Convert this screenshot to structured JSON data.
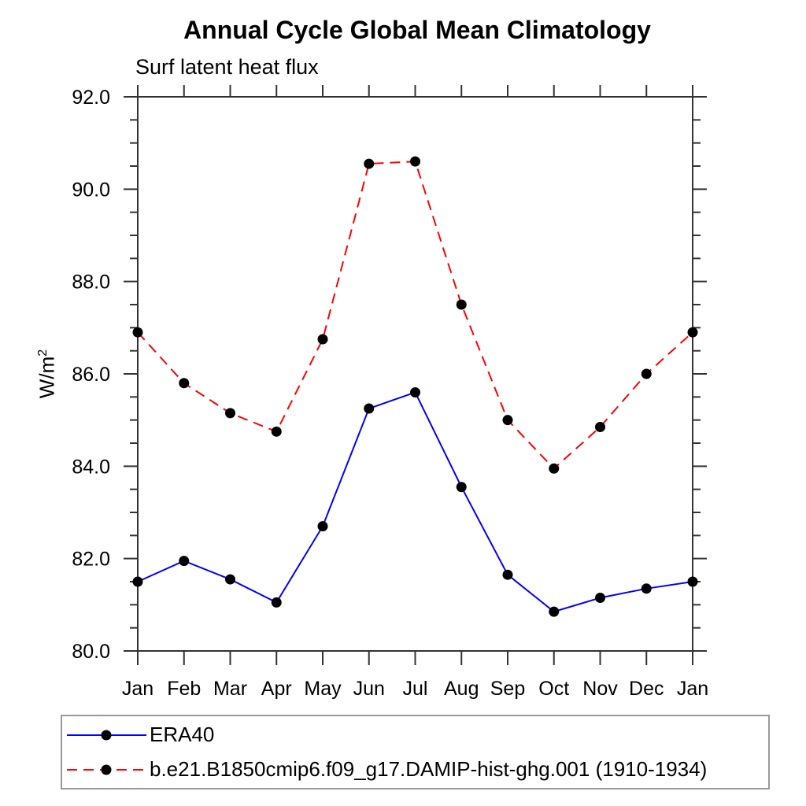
{
  "chart_data": {
    "type": "line",
    "title": "Annual Cycle Global Mean Climatology",
    "subtitle": "Surf latent heat flux",
    "ylabel_base": "W/m",
    "ylabel_exp": "2",
    "categories": [
      "Jan",
      "Feb",
      "Mar",
      "Apr",
      "May",
      "Jun",
      "Jul",
      "Aug",
      "Sep",
      "Oct",
      "Nov",
      "Dec",
      "Jan"
    ],
    "series": [
      {
        "name": "ERA40",
        "color": "#0000ff",
        "line_style": "solid",
        "dash": "none",
        "marker": "filled-circle",
        "marker_color": "#000000",
        "values": [
          81.5,
          81.95,
          81.55,
          81.05,
          82.7,
          85.25,
          85.6,
          83.55,
          81.65,
          80.85,
          81.15,
          81.35,
          81.5
        ]
      },
      {
        "name": "b.e21.B1850cmip6.f09_g17.DAMIP-hist-ghg.001 (1910-1934)",
        "color": "#ff0000",
        "line_style": "dashed",
        "dash": "13 8",
        "marker": "filled-circle",
        "marker_color": "#000000",
        "values": [
          86.9,
          85.8,
          85.15,
          84.75,
          86.75,
          90.55,
          90.6,
          87.5,
          85.0,
          83.95,
          84.85,
          86.0,
          86.9
        ]
      }
    ],
    "ylim": [
      80.0,
      92.0
    ],
    "ytick_step": 2.0,
    "y_minor_step": 0.5,
    "ytick_labels": [
      "80.0",
      "82.0",
      "84.0",
      "86.0",
      "88.0",
      "90.0",
      "92.0"
    ],
    "grid": false,
    "legend_position": "bottom"
  }
}
